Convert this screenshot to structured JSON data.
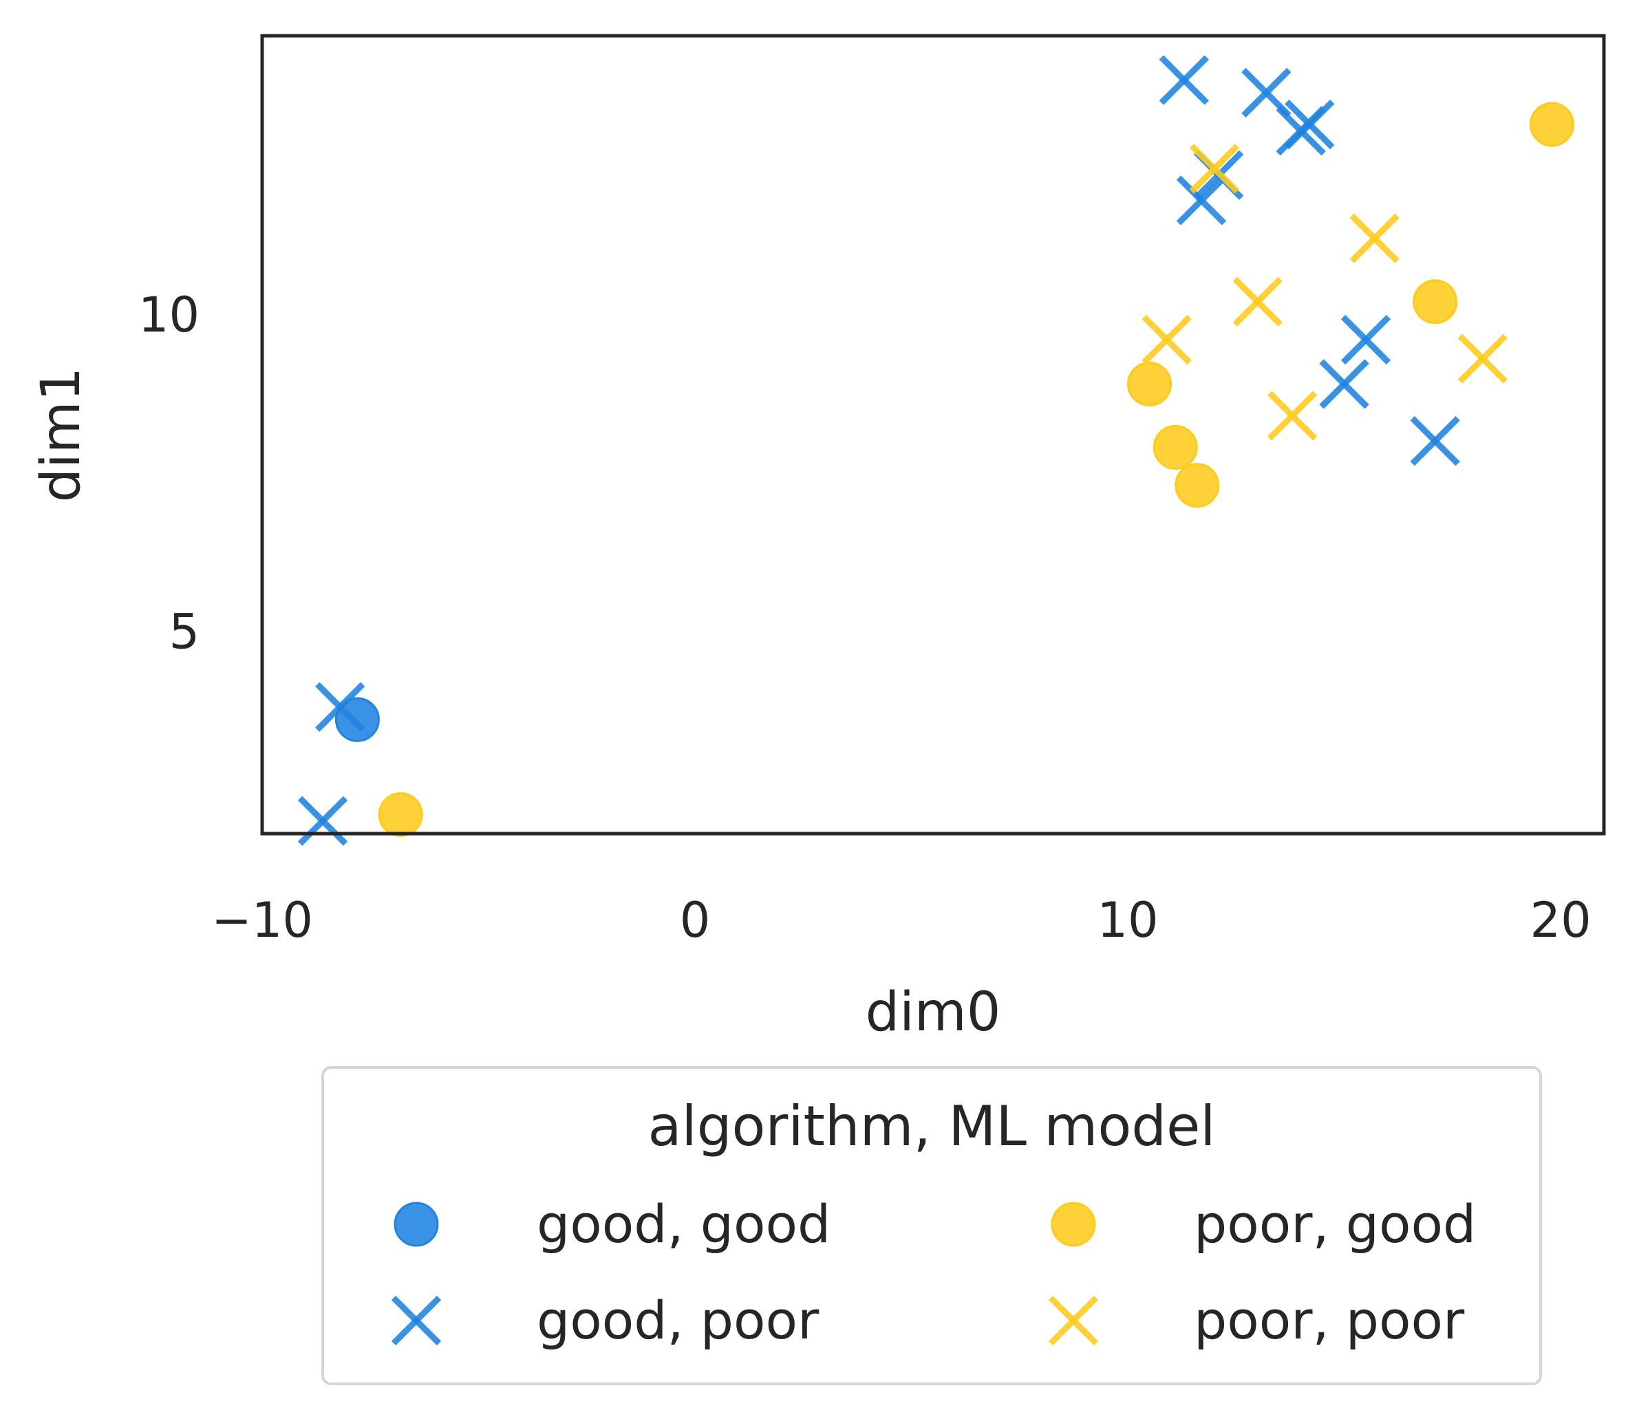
{
  "colors": {
    "good": "#1f83e0",
    "poor": "#fecb1c",
    "frame": "#262626",
    "legend_border": "#d6d6d6"
  },
  "chart_data": {
    "type": "scatter",
    "xlabel": "dim0",
    "ylabel": "dim1",
    "xlim": [
      -10,
      21
    ],
    "ylim": [
      1.8,
      14.4
    ],
    "xticks": [
      -10,
      0,
      10,
      20
    ],
    "xtick_labels": [
      "−10",
      "0",
      "10",
      "20"
    ],
    "yticks": [
      5,
      10
    ],
    "ytick_labels": [
      "5",
      "10"
    ],
    "grid": false,
    "legend": {
      "title": "algorithm, ML model",
      "placement": "below",
      "columns": 2
    },
    "series": [
      {
        "name": "good, good",
        "color": "good",
        "marker": "circle",
        "points": [
          [
            -7.8,
            3.6
          ]
        ]
      },
      {
        "name": "good, poor",
        "color": "good",
        "marker": "x",
        "points": [
          [
            -8.2,
            3.8
          ],
          [
            -8.6,
            2.0
          ],
          [
            11.3,
            13.7
          ],
          [
            13.2,
            13.5
          ],
          [
            14.2,
            13.0
          ],
          [
            14.0,
            12.9
          ],
          [
            12.1,
            12.2
          ],
          [
            11.7,
            11.8
          ],
          [
            15.5,
            9.6
          ],
          [
            15.0,
            8.9
          ],
          [
            17.1,
            8.0
          ]
        ]
      },
      {
        "name": "poor, good",
        "color": "poor",
        "marker": "circle",
        "points": [
          [
            -6.8,
            2.1
          ],
          [
            19.8,
            13.0
          ],
          [
            17.1,
            10.2
          ],
          [
            10.5,
            8.9
          ],
          [
            11.1,
            7.9
          ],
          [
            11.6,
            7.3
          ]
        ]
      },
      {
        "name": "poor, poor",
        "color": "poor",
        "marker": "x",
        "points": [
          [
            12.0,
            12.3
          ],
          [
            15.7,
            11.2
          ],
          [
            13.0,
            10.2
          ],
          [
            10.9,
            9.6
          ],
          [
            18.2,
            9.3
          ],
          [
            13.8,
            8.4
          ]
        ]
      }
    ]
  }
}
